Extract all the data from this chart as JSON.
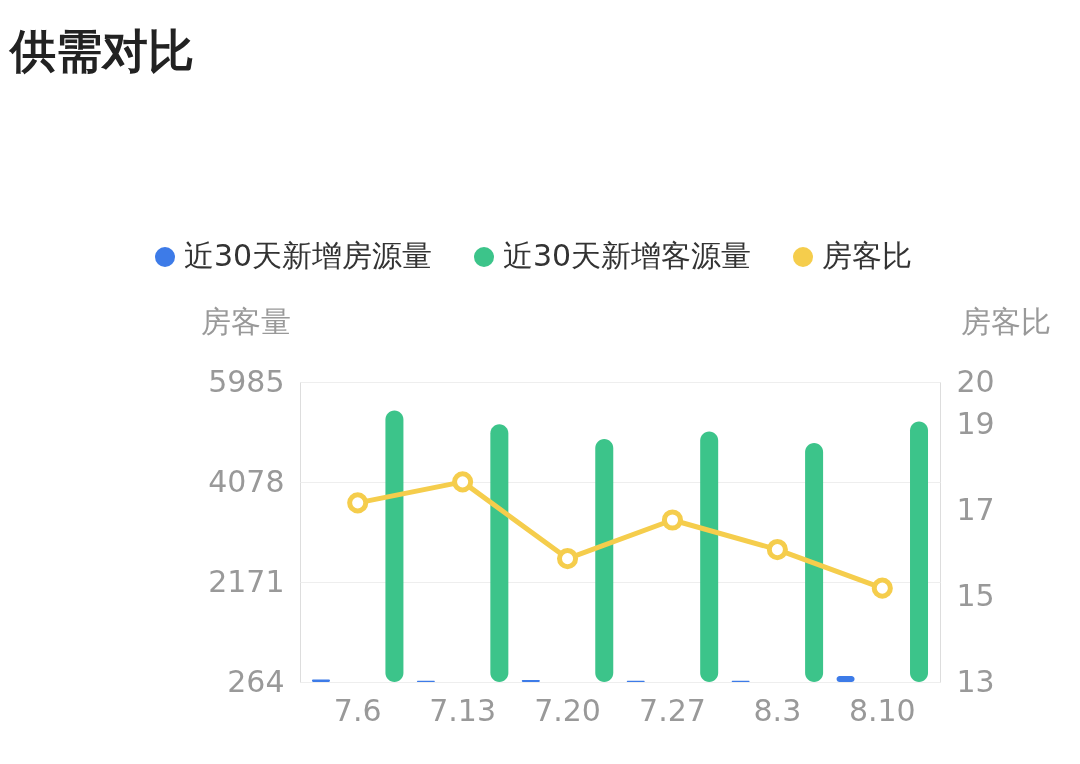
{
  "chart_data": {
    "type": "bar",
    "title": "供需对比",
    "categories": [
      "7.6",
      "7.13",
      "7.20",
      "7.27",
      "8.3",
      "8.10"
    ],
    "series": [
      {
        "name": "近30天新增房源量",
        "color": "#3d7be8",
        "values": [
          310,
          290,
          300,
          290,
          290,
          380
        ]
      },
      {
        "name": "近30天新增客源量",
        "color": "#3cc48a",
        "values": [
          5440,
          5180,
          4900,
          5040,
          4820,
          5230
        ]
      },
      {
        "name": "房客比",
        "color": "#f5cd4c",
        "type": "line",
        "axis": "y2",
        "values": [
          17.18,
          17.67,
          15.88,
          16.78,
          16.09,
          15.19
        ]
      }
    ],
    "ylabel": "房客量",
    "y2label": "房客比",
    "ylim": [
      264,
      5985
    ],
    "yticks": [
      264,
      2171,
      4078,
      5985
    ],
    "y2lim": [
      13,
      20
    ],
    "y2ticks": [
      13,
      15,
      17,
      19,
      20
    ],
    "grid": "y",
    "legend": "top left",
    "marker": "circle",
    "line_style": "solid"
  }
}
